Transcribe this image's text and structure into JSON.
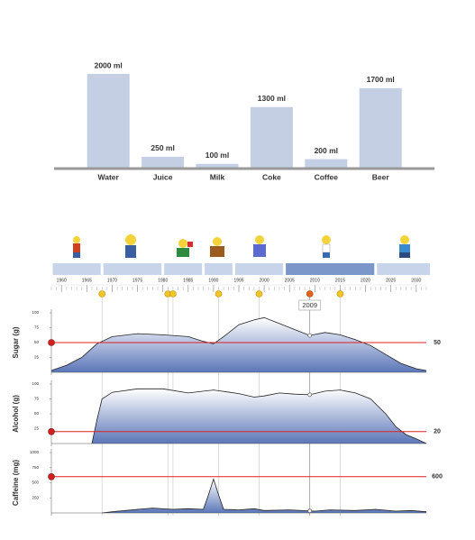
{
  "chart_data": [
    {
      "type": "bar",
      "categories": [
        "Water",
        "Juice",
        "Milk",
        "Coke",
        "Coffee",
        "Beer"
      ],
      "values": [
        2000,
        250,
        100,
        1300,
        200,
        1700
      ],
      "value_labels": [
        "2000 ml",
        "250 ml",
        "100 ml",
        "1300 ml",
        "200 ml",
        "1700 ml"
      ],
      "ylim": [
        0,
        2000
      ],
      "color": "#c5cfe3"
    },
    {
      "type": "timeline",
      "xlim": [
        1958,
        2032
      ],
      "xticks": [
        1960,
        1965,
        1970,
        1975,
        1980,
        1985,
        1990,
        1995,
        2000,
        2005,
        2010,
        2015,
        2020,
        2025,
        2030
      ],
      "eras": [
        [
          1958,
          1967
        ],
        [
          1968,
          1979
        ],
        [
          1980,
          1987
        ],
        [
          1988,
          1993
        ],
        [
          1994,
          2003
        ],
        [
          2004,
          2021
        ],
        [
          2022,
          2032
        ]
      ],
      "selected_era": 5,
      "markers": [
        1968,
        1981,
        1982,
        1991,
        1999,
        2009,
        2015
      ],
      "selected": 2009,
      "color": "#c8d4ea",
      "selected_color": "#7b96c9"
    },
    {
      "type": "area",
      "y_label": "Sugar (g)",
      "xlim": [
        1958,
        2032
      ],
      "ylim": [
        0,
        100
      ],
      "yticks": [
        25,
        50,
        75,
        100
      ],
      "threshold": 50,
      "x": [
        1958,
        1961,
        1964,
        1967,
        1970,
        1975,
        1980,
        1985,
        1988,
        1990,
        1992,
        1995,
        1998,
        2000,
        2003,
        2006,
        2009,
        2012,
        2015,
        2018,
        2021,
        2024,
        2027,
        2030,
        2032
      ],
      "values": [
        3,
        12,
        25,
        48,
        60,
        65,
        63,
        60,
        52,
        48,
        60,
        80,
        88,
        92,
        82,
        72,
        62,
        67,
        63,
        55,
        45,
        30,
        15,
        6,
        3
      ]
    },
    {
      "type": "area",
      "y_label": "Alcohol (g)",
      "xlim": [
        1958,
        2032
      ],
      "ylim": [
        0,
        100
      ],
      "yticks": [
        25,
        50,
        75,
        100
      ],
      "threshold": 20,
      "x": [
        1966,
        1967,
        1968,
        1970,
        1975,
        1980,
        1985,
        1990,
        1995,
        1998,
        2000,
        2003,
        2006,
        2009,
        2012,
        2015,
        2018,
        2021,
        2024,
        2026,
        2028,
        2030,
        2032
      ],
      "values": [
        0,
        40,
        75,
        86,
        92,
        92,
        85,
        90,
        84,
        78,
        80,
        85,
        83,
        82,
        88,
        90,
        85,
        75,
        50,
        28,
        15,
        8,
        0
      ]
    },
    {
      "type": "area",
      "y_label": "Caffeine (mg)",
      "xlim": [
        1958,
        2032
      ],
      "ylim": [
        0,
        1000
      ],
      "yticks": [
        250,
        500,
        750,
        1000
      ],
      "threshold": 600,
      "x": [
        1968,
        1970,
        1975,
        1978,
        1982,
        1985,
        1988,
        1989,
        1990,
        1991,
        1992,
        1995,
        1998,
        2000,
        2005,
        2010,
        2013,
        2018,
        2022,
        2026,
        2029,
        2032
      ],
      "values": [
        0,
        20,
        60,
        80,
        60,
        70,
        60,
        300,
        560,
        300,
        60,
        50,
        70,
        40,
        50,
        30,
        50,
        40,
        60,
        30,
        40,
        20
      ]
    }
  ]
}
